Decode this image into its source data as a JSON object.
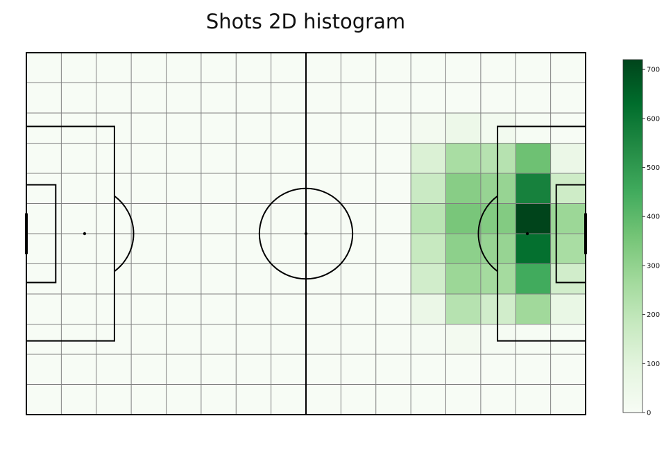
{
  "chart_data": {
    "type": "heatmap",
    "title": "Shots 2D histogram",
    "xlabel": "",
    "ylabel": "",
    "grid": true,
    "n_cols": 16,
    "n_rows": 12,
    "values": [
      [
        0,
        0,
        0,
        0,
        0,
        0,
        0,
        0,
        0,
        0,
        0,
        0,
        0,
        0,
        0,
        0
      ],
      [
        0,
        0,
        0,
        0,
        0,
        0,
        0,
        0,
        0,
        0,
        0,
        0,
        0,
        0,
        0,
        0
      ],
      [
        0,
        0,
        0,
        0,
        0,
        0,
        0,
        0,
        0,
        0,
        0,
        20,
        50,
        25,
        5,
        0
      ],
      [
        0,
        0,
        0,
        0,
        0,
        0,
        0,
        0,
        0,
        0,
        0,
        120,
        250,
        220,
        370,
        60
      ],
      [
        0,
        0,
        0,
        0,
        0,
        0,
        0,
        0,
        0,
        0,
        0,
        170,
        320,
        290,
        570,
        160
      ],
      [
        0,
        0,
        0,
        0,
        0,
        0,
        0,
        0,
        0,
        0,
        0,
        210,
        350,
        330,
        720,
        280
      ],
      [
        0,
        0,
        0,
        0,
        0,
        0,
        0,
        0,
        0,
        0,
        0,
        180,
        310,
        290,
        620,
        250
      ],
      [
        0,
        0,
        0,
        0,
        0,
        0,
        0,
        0,
        0,
        0,
        0,
        150,
        280,
        260,
        450,
        150
      ],
      [
        0,
        0,
        0,
        0,
        0,
        0,
        0,
        0,
        0,
        0,
        0,
        60,
        220,
        150,
        270,
        70
      ],
      [
        0,
        0,
        0,
        0,
        0,
        0,
        0,
        0,
        0,
        0,
        0,
        10,
        20,
        10,
        5,
        5
      ],
      [
        0,
        0,
        0,
        0,
        0,
        0,
        0,
        0,
        0,
        0,
        0,
        0,
        0,
        0,
        0,
        0
      ],
      [
        0,
        0,
        0,
        0,
        0,
        0,
        0,
        0,
        0,
        0,
        0,
        0,
        0,
        0,
        0,
        0
      ]
    ],
    "colorbar": {
      "min": 0,
      "max": 720,
      "ticks": [
        0,
        100,
        200,
        300,
        400,
        500,
        600,
        700
      ],
      "colormap": "Greens"
    },
    "colors": {
      "cmap_low": "#f7fcf5",
      "cmap_high": "#00441b",
      "grid_line": "#808080",
      "pitch_line": "#000000"
    }
  }
}
